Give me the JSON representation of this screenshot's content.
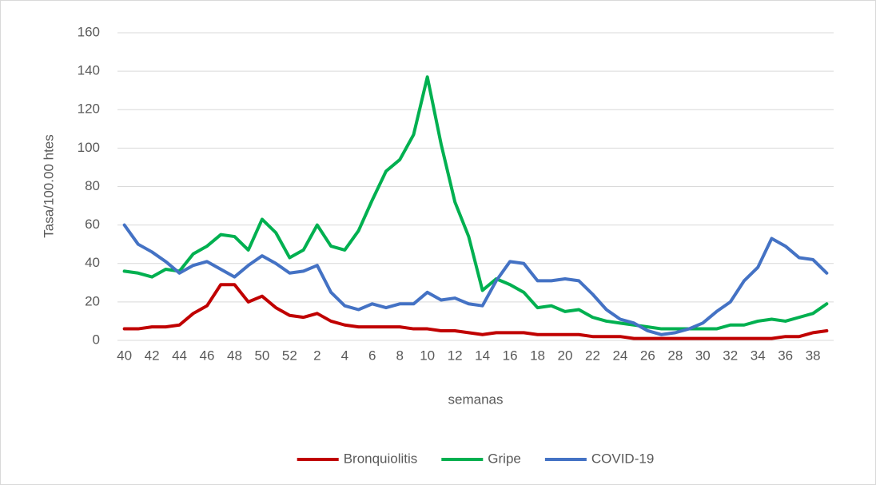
{
  "chart_data": {
    "type": "line",
    "y_label": "Tasa/100.00 htes",
    "x_label": "semanas",
    "categories": [
      "40",
      null,
      "42",
      null,
      "44",
      null,
      "46",
      null,
      "48",
      null,
      "50",
      null,
      "52",
      null,
      "2",
      null,
      "4",
      null,
      "6",
      null,
      "8",
      null,
      "10",
      null,
      "12",
      null,
      "14",
      null,
      "16",
      null,
      "18",
      null,
      "20",
      null,
      "22",
      null,
      "24",
      null,
      "26",
      null,
      "28",
      null,
      "30",
      null,
      "32",
      null,
      "34",
      null,
      "36",
      null,
      "38",
      null
    ],
    "series": [
      {
        "name": "Bronquiolitis",
        "color": "#c00000",
        "values": [
          6,
          6,
          7,
          7,
          8,
          14,
          18,
          29,
          29,
          20,
          23,
          17,
          13,
          12,
          14,
          10,
          8,
          7,
          7,
          7,
          7,
          6,
          6,
          5,
          5,
          4,
          3,
          4,
          4,
          4,
          3,
          3,
          3,
          3,
          2,
          2,
          2,
          1,
          1,
          1,
          1,
          1,
          1,
          1,
          1,
          1,
          1,
          1,
          2,
          2,
          4,
          5
        ]
      },
      {
        "name": "Gripe",
        "color": "#00b050",
        "values": [
          36,
          35,
          33,
          37,
          36,
          45,
          49,
          55,
          54,
          47,
          63,
          56,
          43,
          47,
          60,
          49,
          47,
          57,
          73,
          88,
          94,
          107,
          137,
          102,
          72,
          54,
          26,
          32,
          29,
          25,
          17,
          18,
          15,
          16,
          12,
          10,
          9,
          8,
          7,
          6,
          6,
          6,
          6,
          6,
          8,
          8,
          10,
          11,
          10,
          12,
          14,
          19
        ]
      },
      {
        "name": "COVID-19",
        "color": "#4472c4",
        "values": [
          60,
          50,
          46,
          41,
          35,
          39,
          41,
          37,
          33,
          39,
          44,
          40,
          35,
          36,
          39,
          25,
          18,
          16,
          19,
          17,
          19,
          19,
          25,
          21,
          22,
          19,
          18,
          31,
          41,
          40,
          31,
          31,
          32,
          31,
          24,
          16,
          11,
          9,
          5,
          3,
          4,
          6,
          9,
          15,
          20,
          31,
          38,
          53,
          49,
          43,
          42,
          35
        ]
      }
    ],
    "ylim": [
      0,
      160
    ],
    "yticks": [
      0,
      20,
      40,
      60,
      80,
      100,
      120,
      140,
      160
    ],
    "grid": true,
    "legend": "bottom"
  }
}
